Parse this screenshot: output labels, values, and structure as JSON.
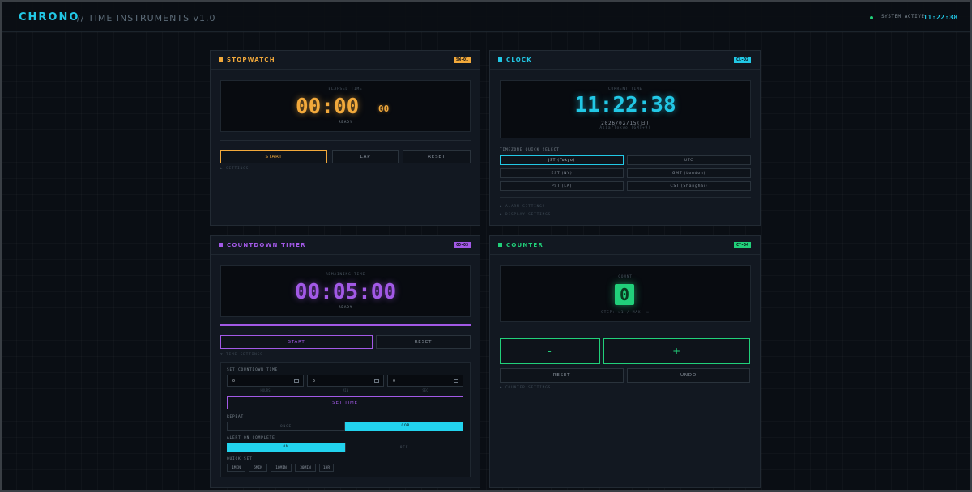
{
  "header": {
    "brand": "CHRONO",
    "subtitle": "// TIME INSTRUMENTS v1.0",
    "status": "SYSTEM ACTIVE",
    "time": "11:22:38"
  },
  "stopwatch": {
    "title": "STOPWATCH",
    "tag": "SW-01",
    "label": "ELAPSED TIME",
    "main": "00:00",
    "ms": "00",
    "state": "READY",
    "start": "START",
    "lap": "LAP",
    "reset": "RESET",
    "settings": "▶ SETTINGS"
  },
  "clock": {
    "title": "CLOCK",
    "tag": "CL-02",
    "label": "CURRENT TIME",
    "time": "11:22:38",
    "date": "2026/02/15(日)",
    "zone": "Asia/Tokyo (GMT+9)",
    "tz_label": "TIMEZONE QUICK SELECT",
    "timezones": [
      "JST (Tokyo)",
      "UTC",
      "EST (NY)",
      "GMT (London)",
      "PST (LA)",
      "CST (Shanghai)"
    ],
    "alarm": "▶ ALARM SETTINGS",
    "display": "▶ DISPLAY SETTINGS"
  },
  "countdown": {
    "title": "COUNTDOWN TIMER",
    "tag": "CD-03",
    "label": "REMAINING TIME",
    "time": "00:05:00",
    "state": "READY",
    "start": "START",
    "reset": "RESET",
    "time_settings": "▼ TIME SETTINGS",
    "set_label": "SET COUNTDOWN TIME",
    "hours": "0",
    "minutes": "5",
    "seconds": "0",
    "unit_hours": "HOURS",
    "unit_min": "MIN",
    "unit_sec": "SEC",
    "set_time": "SET TIME",
    "repeat_label": "REPEAT",
    "repeat_once": "ONCE",
    "repeat_loop": "LOOP",
    "alert_label": "ALERT ON COMPLETE",
    "alert_on": "ON",
    "alert_off": "OFF",
    "quick_label": "QUICK SET",
    "quick": [
      "1MIN",
      "5MIN",
      "10MIN",
      "30MIN",
      "1HR"
    ]
  },
  "counter": {
    "title": "COUNTER",
    "tag": "CT-04",
    "label": "COUNT",
    "value": "0",
    "step": "STEP: x1 / MAX: ∞",
    "minus": "-",
    "plus": "+",
    "reset": "RESET",
    "undo": "UNDO",
    "settings": "▶ COUNTER SETTINGS"
  },
  "colors": {
    "cyan": "#22c8e6",
    "orange": "#f2a93b",
    "purple": "#a259e6",
    "green": "#21d07a"
  }
}
